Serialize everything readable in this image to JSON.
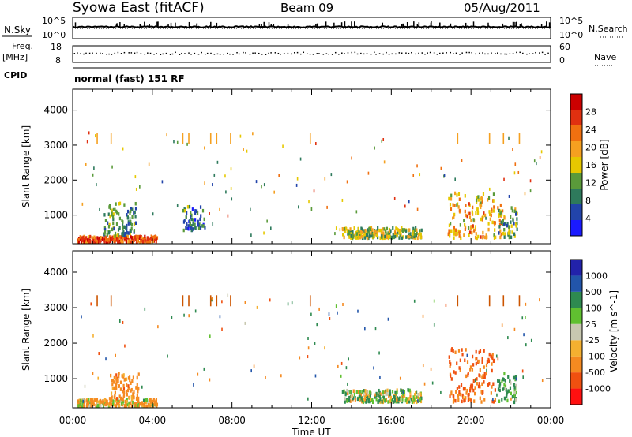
{
  "header": {
    "title": "Syowa East (fitACF)",
    "beam": "Beam 09",
    "date": "05/Aug/2011"
  },
  "top_panels": {
    "nsky_label": "N.Sky",
    "nsearch_label": "N.Search",
    "noise_ticks_left": [
      "10^5",
      "10^0"
    ],
    "noise_ticks_right": [
      "10^5",
      "10^0"
    ],
    "freq_label_line1": "Freq.",
    "freq_label_line2": "[MHz]",
    "freq_ticks": [
      "18",
      "8"
    ],
    "nave_label": "Nave",
    "nave_ticks": [
      "60",
      "0"
    ],
    "cpid_label": "CPID",
    "cpid_text": "normal (fast) 151 RF"
  },
  "colors": {
    "power_scale": [
      "#1a1aff",
      "#2244aa",
      "#2e7a5c",
      "#5a9a3a",
      "#e6c800",
      "#f5a020",
      "#f07010",
      "#e03010",
      "#cc0000"
    ],
    "velocity_scale": [
      "#ff1010",
      "#f05010",
      "#f58a20",
      "#f5b030",
      "#c8c8b0",
      "#60c030",
      "#2e8a50",
      "#2255aa",
      "#2222aa"
    ]
  },
  "chart_data": [
    {
      "type": "heatmap",
      "panel": "power",
      "ylabel": "Slant Range [km]",
      "yticks": [
        1000,
        2000,
        3000,
        4000
      ],
      "ylim": [
        180,
        4600
      ],
      "xlim": [
        0,
        24
      ],
      "xticks": [
        "00:00",
        "04:00",
        "08:00",
        "12:00",
        "16:00",
        "20:00",
        "00:00"
      ],
      "colorbar_label": "Power [dB]",
      "colorbar_ticks": [
        4,
        8,
        12,
        16,
        20,
        24,
        28
      ],
      "regions": [
        {
          "t0": 0.2,
          "t1": 4.2,
          "r0": 180,
          "r1": 350,
          "value": 26
        },
        {
          "t0": 1.5,
          "t1": 3.2,
          "r0": 350,
          "r1": 1300,
          "value": 10
        },
        {
          "t0": 5.5,
          "t1": 6.6,
          "r0": 500,
          "r1": 1200,
          "value": 8
        },
        {
          "t0": 13.5,
          "t1": 17.5,
          "r0": 300,
          "r1": 600,
          "value": 14
        },
        {
          "t0": 18.8,
          "t1": 21.5,
          "r0": 300,
          "r1": 1600,
          "value": 20
        },
        {
          "t0": 21.3,
          "t1": 22.3,
          "r0": 300,
          "r1": 1200,
          "value": 12
        }
      ]
    },
    {
      "type": "heatmap",
      "panel": "velocity",
      "ylabel": "Slant Range [km]",
      "xlabel": "Time UT",
      "yticks": [
        1000,
        2000,
        3000,
        4000
      ],
      "ylim": [
        180,
        4600
      ],
      "xlim": [
        0,
        24
      ],
      "xticks": [
        "00:00",
        "04:00",
        "08:00",
        "12:00",
        "16:00",
        "20:00",
        "00:00"
      ],
      "colorbar_label": "Velocity [m s^-1]",
      "colorbar_ticks": [
        1000,
        500,
        100,
        25,
        -25,
        -100,
        -500,
        -1000
      ],
      "regions": [
        {
          "t0": 0.2,
          "t1": 4.2,
          "r0": 180,
          "r1": 380,
          "value": -120
        },
        {
          "t0": 1.8,
          "t1": 3.3,
          "r0": 380,
          "r1": 1100,
          "value": -300
        },
        {
          "t0": 13.5,
          "t1": 17.5,
          "r0": 300,
          "r1": 650,
          "value": 60
        },
        {
          "t0": 18.8,
          "t1": 21.2,
          "r0": 300,
          "r1": 1800,
          "value": -500
        },
        {
          "t0": 21.3,
          "t1": 22.3,
          "r0": 300,
          "r1": 1100,
          "value": 200
        }
      ]
    }
  ]
}
